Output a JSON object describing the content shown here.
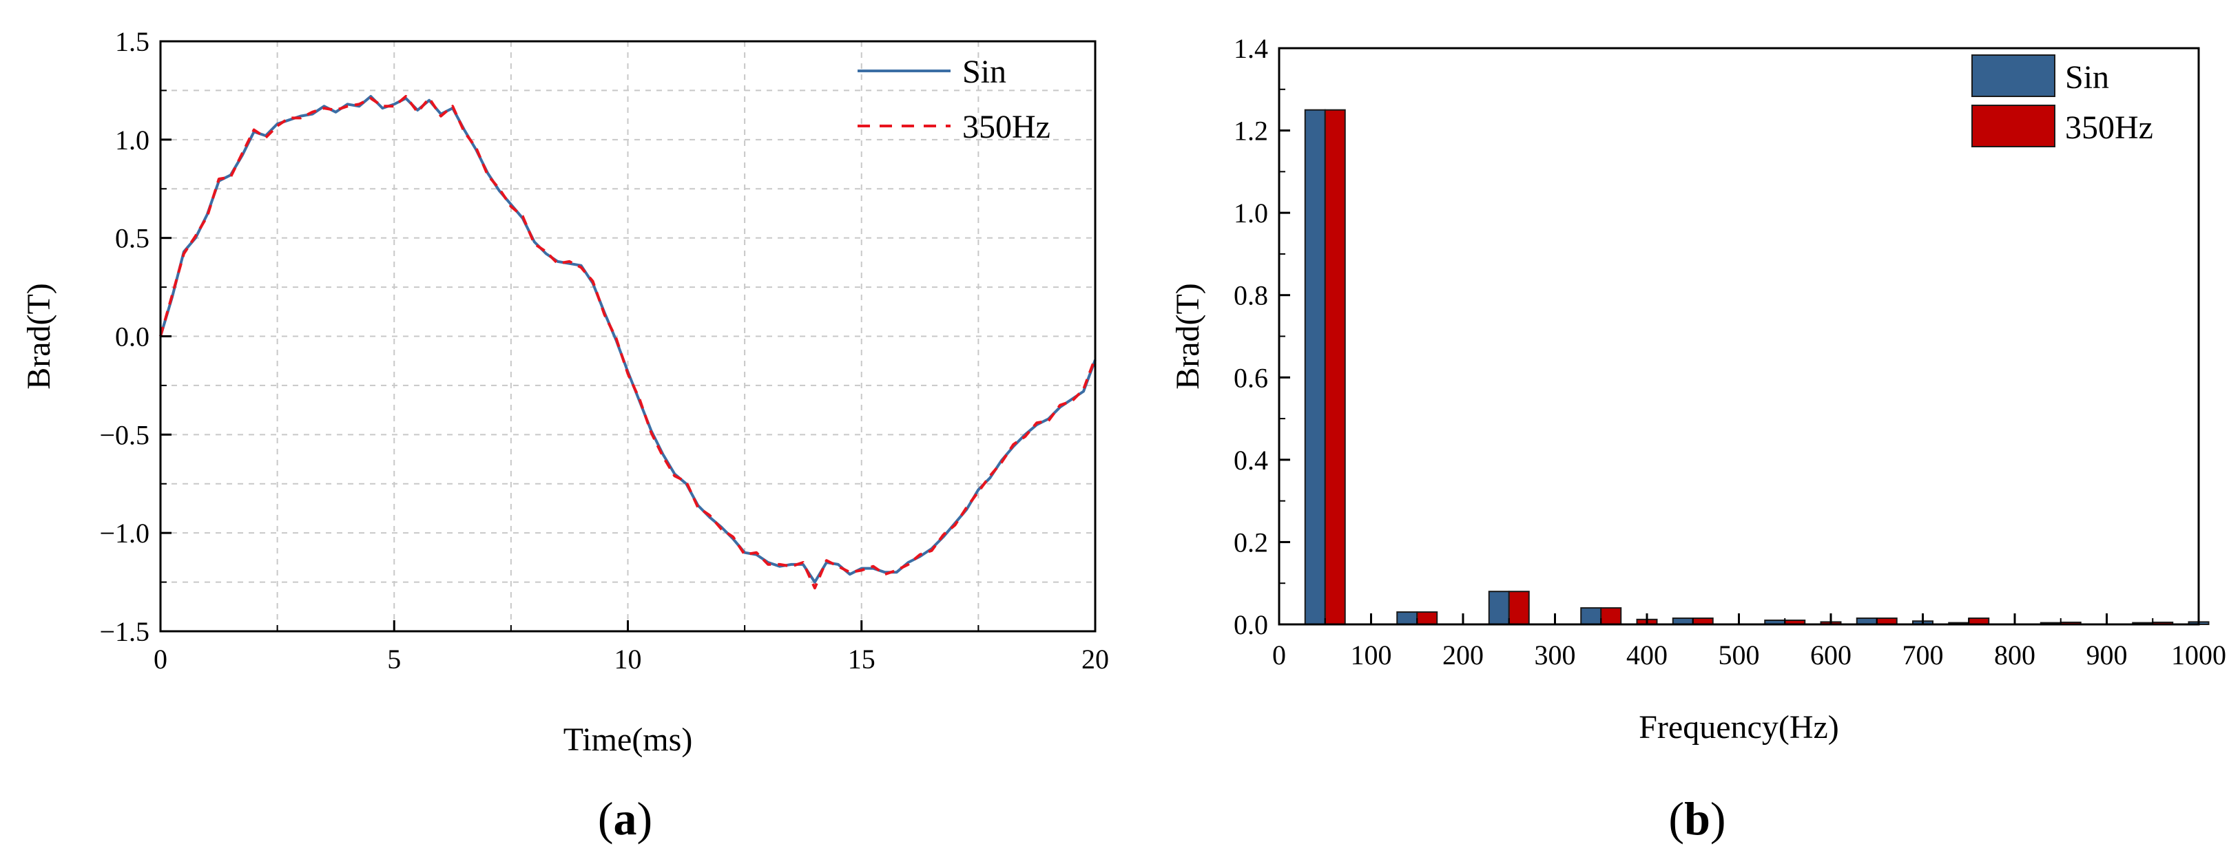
{
  "chart_data": [
    {
      "type": "line",
      "panel_label": "a",
      "title": "",
      "xlabel": "Time(ms)",
      "ylabel": "Brad(T)",
      "xlim": [
        0,
        20
      ],
      "ylim": [
        -1.5,
        1.5
      ],
      "xticks": [
        "0",
        "5",
        "10",
        "15",
        "20"
      ],
      "yticks": [
        "1.5",
        "1.0",
        "0.5",
        "0.0",
        "−0.5",
        "−1.0",
        "−1.5"
      ],
      "grid": true,
      "legend_position": "top-right",
      "x": [
        0,
        0.25,
        0.5,
        0.75,
        1,
        1.25,
        1.5,
        1.75,
        2,
        2.25,
        2.5,
        2.75,
        3,
        3.25,
        3.5,
        3.75,
        4,
        4.25,
        4.5,
        4.75,
        5,
        5.25,
        5.5,
        5.75,
        6,
        6.25,
        6.5,
        6.75,
        7,
        7.25,
        7.5,
        7.75,
        8,
        8.25,
        8.5,
        8.75,
        9,
        9.25,
        9.5,
        9.75,
        10,
        10.25,
        10.5,
        10.75,
        11,
        11.25,
        11.5,
        11.75,
        12,
        12.25,
        12.5,
        12.75,
        13,
        13.25,
        13.5,
        13.75,
        14,
        14.25,
        14.5,
        14.75,
        15,
        15.25,
        15.5,
        15.75,
        16,
        16.25,
        16.5,
        16.75,
        17,
        17.25,
        17.5,
        17.75,
        18,
        18.25,
        18.5,
        18.75,
        19,
        19.25,
        19.5,
        19.75,
        20
      ],
      "series": [
        {
          "name": "Sin",
          "color": "#3b6ea5",
          "style": "solid",
          "values": [
            0.0,
            0.2,
            0.43,
            0.5,
            0.62,
            0.79,
            0.82,
            0.92,
            1.04,
            1.02,
            1.08,
            1.1,
            1.12,
            1.13,
            1.17,
            1.14,
            1.18,
            1.17,
            1.22,
            1.16,
            1.18,
            1.21,
            1.15,
            1.2,
            1.13,
            1.16,
            1.05,
            0.95,
            0.83,
            0.74,
            0.67,
            0.6,
            0.48,
            0.42,
            0.38,
            0.37,
            0.36,
            0.27,
            0.12,
            -0.02,
            -0.18,
            -0.33,
            -0.48,
            -0.6,
            -0.7,
            -0.75,
            -0.86,
            -0.92,
            -0.97,
            -1.03,
            -1.1,
            -1.11,
            -1.15,
            -1.17,
            -1.16,
            -1.16,
            -1.25,
            -1.15,
            -1.16,
            -1.21,
            -1.18,
            -1.18,
            -1.2,
            -1.2,
            -1.15,
            -1.12,
            -1.08,
            -1.02,
            -0.95,
            -0.88,
            -0.78,
            -0.72,
            -0.63,
            -0.56,
            -0.5,
            -0.45,
            -0.42,
            -0.36,
            -0.32,
            -0.28,
            -0.12
          ]
        },
        {
          "name": "350Hz",
          "color": "#e8141e",
          "style": "dashed",
          "values": [
            0.0,
            0.21,
            0.42,
            0.51,
            0.61,
            0.8,
            0.81,
            0.93,
            1.05,
            1.01,
            1.07,
            1.11,
            1.11,
            1.14,
            1.16,
            1.15,
            1.17,
            1.18,
            1.21,
            1.17,
            1.17,
            1.22,
            1.14,
            1.21,
            1.12,
            1.17,
            1.04,
            0.96,
            0.82,
            0.75,
            0.66,
            0.61,
            0.47,
            0.43,
            0.37,
            0.38,
            0.35,
            0.28,
            0.11,
            -0.01,
            -0.19,
            -0.32,
            -0.49,
            -0.61,
            -0.71,
            -0.74,
            -0.87,
            -0.91,
            -0.98,
            -1.02,
            -1.11,
            -1.1,
            -1.16,
            -1.16,
            -1.17,
            -1.15,
            -1.28,
            -1.14,
            -1.17,
            -1.2,
            -1.19,
            -1.17,
            -1.21,
            -1.19,
            -1.16,
            -1.11,
            -1.09,
            -1.01,
            -0.96,
            -0.87,
            -0.79,
            -0.71,
            -0.64,
            -0.55,
            -0.51,
            -0.44,
            -0.43,
            -0.35,
            -0.33,
            -0.27,
            -0.11
          ]
        }
      ]
    },
    {
      "type": "bar",
      "panel_label": "b",
      "title": "",
      "xlabel": "Frequency(Hz)",
      "ylabel": "Brad(T)",
      "xlim": [
        0,
        1000
      ],
      "ylim": [
        0,
        1.4
      ],
      "xticks": [
        "0",
        "100",
        "200",
        "300",
        "400",
        "500",
        "600",
        "700",
        "800",
        "900",
        "1000"
      ],
      "yticks": [
        "1.4",
        "1.2",
        "1.0",
        "0.8",
        "0.6",
        "0.4",
        "0.2",
        "0.0"
      ],
      "grid": false,
      "legend_position": "top-right",
      "categories": [
        50,
        150,
        250,
        350,
        450,
        550,
        650,
        750,
        850,
        950
      ],
      "series": [
        {
          "name": "Sin",
          "color": "#35618f",
          "values": [
            1.25,
            0.03,
            0.08,
            0.04,
            0.015,
            0.01,
            0.015,
            0.004,
            0.004,
            0.004
          ]
        },
        {
          "name": "350Hz",
          "color": "#c00000",
          "values": [
            1.25,
            0.03,
            0.08,
            0.04,
            0.015,
            0.01,
            0.015,
            0.015,
            0.005,
            0.005
          ]
        }
      ],
      "extra_bars": [
        {
          "x": 400,
          "series": "350Hz",
          "value": 0.012
        },
        {
          "x": 700,
          "series": "Sin",
          "value": 0.008
        },
        {
          "x": 600,
          "series": "350Hz",
          "value": 0.006
        },
        {
          "x": 1000,
          "series": "Sin",
          "value": 0.006
        }
      ]
    }
  ]
}
